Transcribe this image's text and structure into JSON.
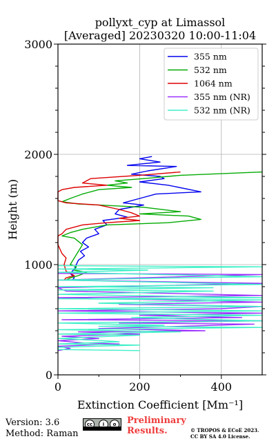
{
  "chart_data": {
    "type": "line",
    "title": "pollyxt_cyp at Limassol",
    "subtitle": "[Averaged] 20230320 10:00-11:04",
    "xlabel": "Extinction Coefficient [Mm⁻¹]",
    "ylabel": "Height (m)",
    "xlim": [
      0,
      500
    ],
    "ylim": [
      0,
      3000
    ],
    "xticks": [
      "0",
      "200",
      "400"
    ],
    "yticks": [
      "0",
      "1000",
      "2000",
      "3000"
    ],
    "grid": true,
    "legend_position": "top-right",
    "series": [
      {
        "name": "355 nm",
        "color": "#0000ee",
        "points": [
          [
            230,
            1980
          ],
          [
            200,
            1960
          ],
          [
            250,
            1930
          ],
          [
            170,
            1900
          ],
          [
            290,
            1890
          ],
          [
            220,
            1850
          ],
          [
            180,
            1820
          ],
          [
            250,
            1800
          ],
          [
            260,
            1780
          ],
          [
            200,
            1750
          ],
          [
            270,
            1720
          ],
          [
            350,
            1660
          ],
          [
            240,
            1640
          ],
          [
            200,
            1600
          ],
          [
            160,
            1560
          ],
          [
            210,
            1540
          ],
          [
            150,
            1500
          ],
          [
            140,
            1460
          ],
          [
            170,
            1430
          ],
          [
            110,
            1400
          ],
          [
            120,
            1360
          ],
          [
            90,
            1320
          ],
          [
            100,
            1280
          ],
          [
            70,
            1240
          ],
          [
            60,
            1200
          ],
          [
            75,
            1160
          ],
          [
            55,
            1120
          ],
          [
            65,
            1080
          ],
          [
            50,
            1040
          ],
          [
            45,
            1000
          ],
          [
            40,
            960
          ],
          [
            30,
            920
          ],
          [
            40,
            880
          ],
          [
            35,
            860
          ]
        ]
      },
      {
        "name": "532 nm",
        "color": "#00aa00",
        "points": [
          [
            500,
            1840
          ],
          [
            300,
            1810
          ],
          [
            210,
            1780
          ],
          [
            140,
            1760
          ],
          [
            170,
            1740
          ],
          [
            120,
            1720
          ],
          [
            180,
            1700
          ],
          [
            100,
            1680
          ],
          [
            60,
            1640
          ],
          [
            30,
            1600
          ],
          [
            10,
            1570
          ],
          [
            50,
            1550
          ],
          [
            210,
            1520
          ],
          [
            300,
            1480
          ],
          [
            200,
            1460
          ],
          [
            320,
            1440
          ],
          [
            350,
            1410
          ],
          [
            270,
            1380
          ],
          [
            120,
            1360
          ],
          [
            60,
            1320
          ],
          [
            30,
            1290
          ],
          [
            10,
            1260
          ],
          [
            40,
            1240
          ],
          [
            60,
            1180
          ],
          [
            50,
            1120
          ],
          [
            40,
            1060
          ],
          [
            30,
            1000
          ],
          [
            45,
            980
          ],
          [
            40,
            950
          ],
          [
            70,
            930
          ],
          [
            50,
            900
          ],
          [
            30,
            880
          ],
          [
            20,
            860
          ]
        ]
      },
      {
        "name": "1064 nm",
        "color": "#dd0000",
        "points": [
          [
            300,
            1840
          ],
          [
            200,
            1810
          ],
          [
            80,
            1780
          ],
          [
            60,
            1740
          ],
          [
            120,
            1720
          ],
          [
            40,
            1700
          ],
          [
            10,
            1680
          ],
          [
            0,
            1660
          ],
          [
            0,
            1580
          ],
          [
            20,
            1560
          ],
          [
            100,
            1540
          ],
          [
            150,
            1500
          ],
          [
            180,
            1470
          ],
          [
            200,
            1440
          ],
          [
            150,
            1420
          ],
          [
            200,
            1400
          ],
          [
            120,
            1380
          ],
          [
            60,
            1360
          ],
          [
            20,
            1320
          ],
          [
            10,
            1280
          ],
          [
            0,
            1260
          ],
          [
            0,
            1180
          ],
          [
            10,
            1100
          ],
          [
            20,
            1060
          ],
          [
            15,
            1000
          ],
          [
            20,
            940
          ],
          [
            40,
            900
          ],
          [
            20,
            880
          ],
          [
            15,
            860
          ]
        ]
      },
      {
        "name": "355 nm (NR)",
        "color": "#9b30ff",
        "points": [
          [
            0,
            920
          ],
          [
            500,
            910
          ],
          [
            0,
            860
          ],
          [
            500,
            830
          ],
          [
            0,
            790
          ],
          [
            20,
            760
          ],
          [
            500,
            720
          ],
          [
            0,
            700
          ],
          [
            500,
            660
          ],
          [
            150,
            640
          ],
          [
            500,
            620
          ],
          [
            400,
            600
          ],
          [
            0,
            580
          ],
          [
            500,
            560
          ],
          [
            200,
            540
          ],
          [
            450,
            520
          ],
          [
            10,
            500
          ],
          [
            500,
            490
          ],
          [
            150,
            470
          ],
          [
            480,
            460
          ],
          [
            300,
            440
          ],
          [
            100,
            420
          ],
          [
            360,
            400
          ],
          [
            50,
            390
          ],
          [
            200,
            370
          ],
          [
            10,
            350
          ],
          [
            100,
            330
          ],
          [
            0,
            310
          ],
          [
            60,
            290
          ],
          [
            150,
            280
          ],
          [
            0,
            260
          ],
          [
            30,
            240
          ],
          [
            0,
            220
          ]
        ]
      },
      {
        "name": "532 nm (NR)",
        "color": "#3ef0c8",
        "points": [
          [
            0,
            990
          ],
          [
            500,
            980
          ],
          [
            0,
            960
          ],
          [
            220,
            950
          ],
          [
            0,
            930
          ],
          [
            500,
            890
          ],
          [
            300,
            880
          ],
          [
            0,
            860
          ],
          [
            500,
            820
          ],
          [
            0,
            800
          ],
          [
            380,
            790
          ],
          [
            0,
            770
          ],
          [
            380,
            760
          ],
          [
            0,
            730
          ],
          [
            500,
            700
          ],
          [
            0,
            690
          ],
          [
            500,
            680
          ],
          [
            100,
            650
          ],
          [
            500,
            620
          ],
          [
            0,
            600
          ],
          [
            500,
            580
          ],
          [
            0,
            560
          ],
          [
            500,
            540
          ],
          [
            180,
            520
          ],
          [
            500,
            490
          ],
          [
            0,
            470
          ],
          [
            260,
            450
          ],
          [
            100,
            440
          ],
          [
            500,
            430
          ],
          [
            0,
            410
          ],
          [
            300,
            390
          ],
          [
            0,
            370
          ],
          [
            200,
            360
          ],
          [
            0,
            330
          ],
          [
            110,
            310
          ],
          [
            150,
            300
          ],
          [
            0,
            280
          ],
          [
            200,
            270
          ],
          [
            0,
            250
          ],
          [
            0,
            230
          ],
          [
            200,
            220
          ]
        ]
      }
    ]
  },
  "footer": {
    "version": "Version: 3.6",
    "method": "Method: Raman",
    "preliminary_line1": "Preliminary",
    "preliminary_line2": "Results.",
    "copyright_line1": "© TROPOS & ECoE 2023.",
    "copyright_line2": "CC BY SA 4.0 License."
  },
  "colors": {
    "axis": "#000000",
    "grid": "#b0b0b0",
    "preliminary": "#ee3b3b"
  }
}
